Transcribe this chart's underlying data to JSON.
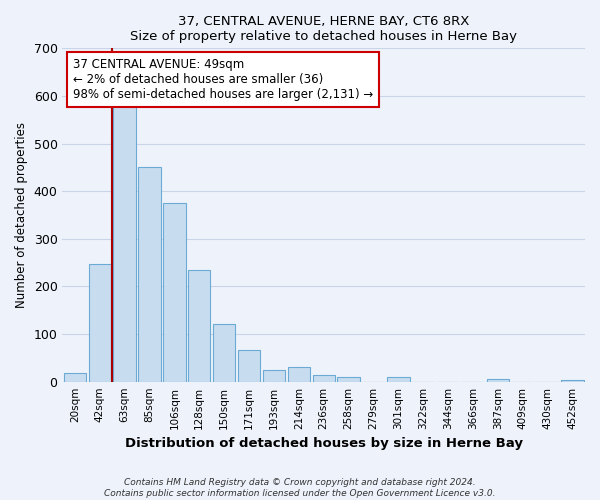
{
  "title": "37, CENTRAL AVENUE, HERNE BAY, CT6 8RX",
  "subtitle": "Size of property relative to detached houses in Herne Bay",
  "xlabel": "Distribution of detached houses by size in Herne Bay",
  "ylabel": "Number of detached properties",
  "bar_labels": [
    "20sqm",
    "42sqm",
    "63sqm",
    "85sqm",
    "106sqm",
    "128sqm",
    "150sqm",
    "171sqm",
    "193sqm",
    "214sqm",
    "236sqm",
    "258sqm",
    "279sqm",
    "301sqm",
    "322sqm",
    "344sqm",
    "366sqm",
    "387sqm",
    "409sqm",
    "430sqm",
    "452sqm"
  ],
  "bar_values": [
    18,
    247,
    583,
    450,
    375,
    235,
    121,
    67,
    25,
    31,
    13,
    10,
    0,
    9,
    0,
    0,
    0,
    5,
    0,
    0,
    3
  ],
  "bar_color": "#c8dcf0",
  "bar_edge_color": "#6aaad4",
  "vline_x": 1.5,
  "vline_color": "#aa0000",
  "ylim": [
    0,
    700
  ],
  "yticks": [
    0,
    100,
    200,
    300,
    400,
    500,
    600,
    700
  ],
  "annotation_title": "37 CENTRAL AVENUE: 49sqm",
  "annotation_line1": "← 2% of detached houses are smaller (36)",
  "annotation_line2": "98% of semi-detached houses are larger (2,131) →",
  "annotation_box_color": "#ffffff",
  "annotation_box_edge": "#cc0000",
  "footer1": "Contains HM Land Registry data © Crown copyright and database right 2024.",
  "footer2": "Contains public sector information licensed under the Open Government Licence v3.0.",
  "background_color": "#eef2fa",
  "plot_bg_color": "#eef2fa",
  "grid_color": "#c8d4e8"
}
